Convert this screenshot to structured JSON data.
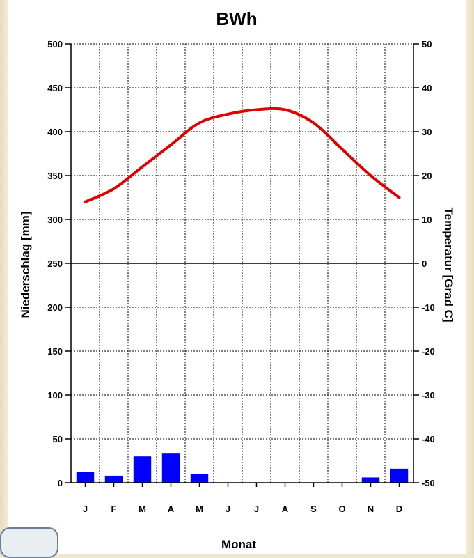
{
  "chart_data": {
    "type": "bar+line",
    "title": "BWh",
    "xlabel": "Monat",
    "ylabel_left": "Niederschlag [mm]",
    "ylabel_right": "Temperatur [Grad C]",
    "categories": [
      "J",
      "F",
      "M",
      "A",
      "M",
      "J",
      "J",
      "A",
      "S",
      "O",
      "N",
      "D"
    ],
    "left_ylim": [
      0,
      500
    ],
    "left_ticks": [
      "0",
      "50",
      "100",
      "150",
      "200",
      "250",
      "300",
      "350",
      "400",
      "450",
      "500"
    ],
    "right_ylim": [
      -50,
      50
    ],
    "right_ticks": [
      "-50",
      "-40",
      "-30",
      "-20",
      "-10",
      "0",
      "10",
      "20",
      "30",
      "40",
      "50"
    ],
    "grid": true,
    "precipitation": {
      "color": "#0000ff",
      "values": [
        12,
        8,
        30,
        34,
        10,
        0,
        0,
        0,
        0,
        0,
        6,
        16
      ]
    },
    "temperature": {
      "color": "#e00000",
      "values": [
        14,
        17,
        22,
        27,
        32,
        34,
        35,
        35,
        32,
        26,
        20,
        15
      ]
    }
  }
}
